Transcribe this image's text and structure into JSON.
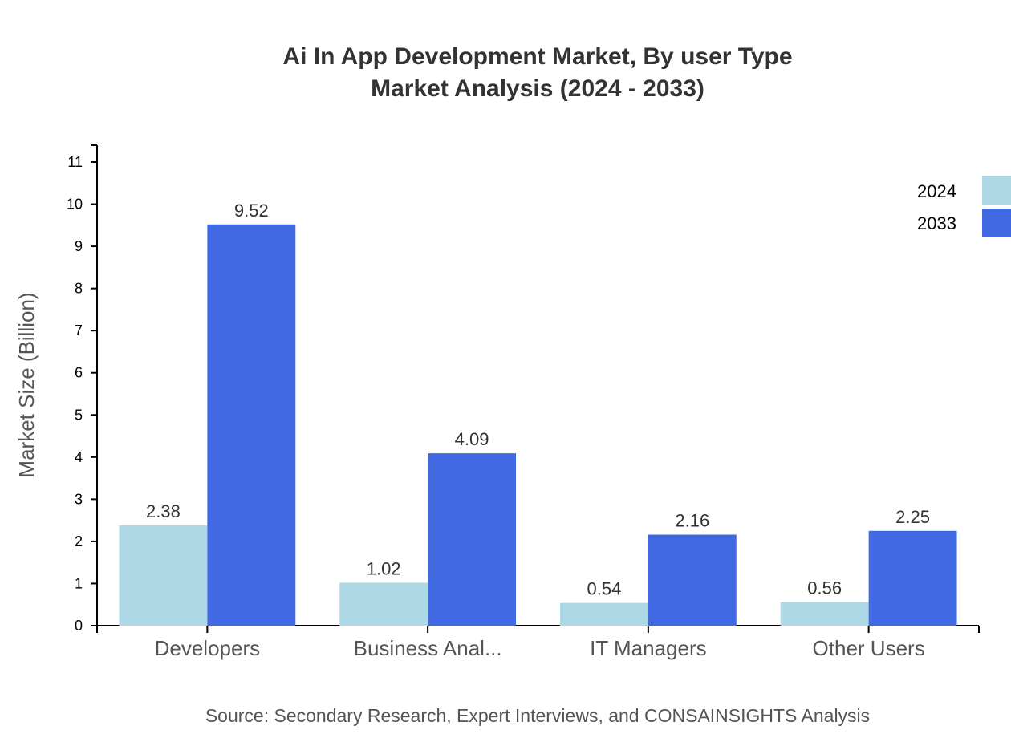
{
  "chart_data": {
    "type": "bar",
    "title": "Ai In App Development Market, By user Type",
    "subtitle": "Market Analysis (2024 - 2033)",
    "xlabel": "",
    "ylabel": "Market Size (Billion)",
    "ylim": [
      0,
      11.4
    ],
    "yticks": [
      0,
      1,
      2,
      3,
      4,
      5,
      6,
      7,
      8,
      9,
      10,
      11
    ],
    "categories": [
      "Developers",
      "Business Anal...",
      "IT Managers",
      "Other Users"
    ],
    "series": [
      {
        "name": "2024",
        "color": "#add8e6",
        "values": [
          2.38,
          1.02,
          0.54,
          0.56
        ]
      },
      {
        "name": "2033",
        "color": "#4169e1",
        "values": [
          9.52,
          4.09,
          2.16,
          2.25
        ]
      }
    ],
    "grid": false,
    "legend": "top-right",
    "source": "Source: Secondary Research, Expert Interviews, and CONSAINSIGHTS Analysis"
  }
}
